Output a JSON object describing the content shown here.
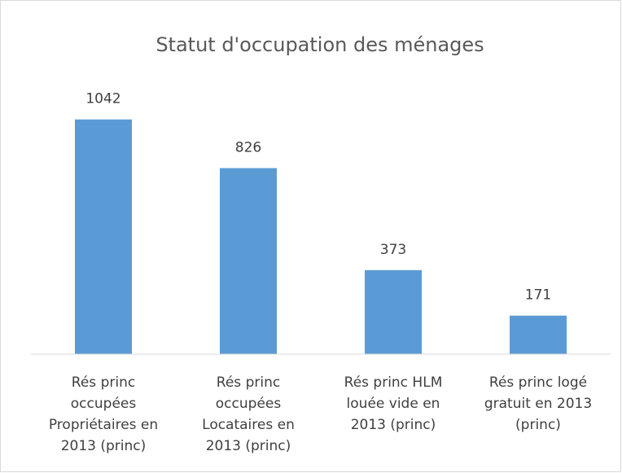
{
  "chart_data": {
    "type": "bar",
    "title": "Statut d'occupation des ménages",
    "categories": [
      "Rés princ occupées Propriétaires en 2013 (princ)",
      "Rés princ occupées Locataires en 2013 (princ)",
      "Rés princ HLM louée vide en 2013 (princ)",
      "Rés princ logé gratuit en 2013 (princ)"
    ],
    "values": [
      1042,
      826,
      373,
      171
    ],
    "color": "#5b9bd5",
    "ylim": [
      0,
      1200
    ],
    "grid": false
  }
}
